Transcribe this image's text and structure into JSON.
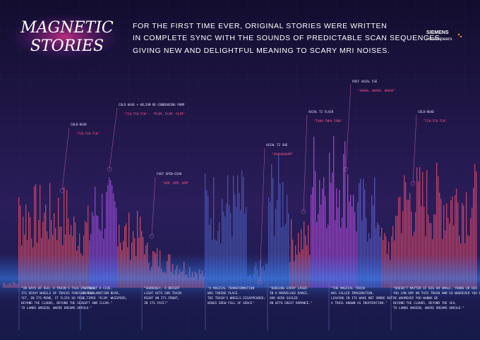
{
  "logo": {
    "line1": "MAGNETIC",
    "line2": "STORIES"
  },
  "headline": [
    "FOR THE FIRST TIME EVER, ORIGINAL STORIES WERE WRITTEN",
    "IN COMPLETE SYNC WITH THE SOUNDS OF PREDICTABLE SCAN SEQUENCES,",
    "GIVING NEW AND DELIGHTFUL MEANING TO SCARY MRI NOISES."
  ],
  "brand": {
    "line1": "SIEMENS",
    "line2": "Healthineers"
  },
  "annotations": [
    {
      "label": "COLD-HEAD",
      "sound": "\"TCH-TCH-TCH\""
    },
    {
      "label": "COLD HEAD + HELIUM RE-CONDENSING PUMP",
      "sound": "\"TCH-TCH-TCH\" · \"PLIM, PLIM, PLIM\""
    },
    {
      "label": "FAST SPIN-ECHO",
      "sound": "\"HIM, HIM, HIM\""
    },
    {
      "label": "AXIAL T2 SHE",
      "sound": "\"ZAAAAAAAAM\""
    },
    {
      "label": "AXIAL T2 FLAIR",
      "sound": "\"TAKA-TAKA-TAKA\""
    },
    {
      "label": "POST AXIAL FSE",
      "sound": "\"SHAAA, WAAAA, WAAAA\""
    },
    {
      "label": "COLD-HEAD",
      "sound": "\"TCH-TCH-TCH\""
    }
  ],
  "stories": [
    [
      "\"IN DAYS OF OLD, A TRAIN'S TALE IS TOLD,",
      "ITS HEAVY WHEELS OF TRACKS FOREVER ROLL.",
      "YET, IN ITS MIND, IT FLIES SO FREE,",
      "BEYOND THE CLOUDS, BEYOND THE SEA,",
      "TO LANDS UNSEEN, WHERE DREAMS UNFOLD.\""
    ],
    [
      "\"WITHOUT A CLUE,",
      "NO EXPLANATION NEAR,",
      "A TIMID 'PLIM' WHISPERS,",
      "SOFT AND CLEAR.\""
    ],
    [
      "\"SUDDENLY, A BRIGHT",
      "LIGHT HITS OUR TRAIN",
      "RIGHT ON ITS FRONT,",
      "IN ITS FACE!\""
    ],
    [
      "\"A MAGICAL TRANSFORMATION",
      "WAS TAKING PLACE.",
      "THE TRAIN'S WHEELS DISAPPEARED;",
      "WINGS GREW FULL OF GRACE\""
    ],
    [
      "\"DODGING EVERY LASER",
      "IN A MARVELOUS DANCE,",
      "OUR HERO SAILED",
      "ON WITH GREAT ROMANCE.\""
    ],
    [
      "\"THE MAGICAL TRAIN",
      "WAS CALLED IMAGINATION,",
      "LEAVING IN ITS WAKE NOT SMOKE BUT",
      "A TRAIL KNOWN AS INSPIRATION.\""
    ],
    [
      "\"DOESN'T MATTER IF BIG OR SMALL, YOUNG OR OLD",
      "YOU CAN HOP ON THIS TRAIN AND GO WHEREVER YOU WANNA GO",
      "BE WHOMEVER YOU WANNA BE",
      "BEYOND THE CLOUDS, BEYOND THE SEA,",
      "TO LANDS UNSEEN, WHERE DREAMS UNFOLD.\""
    ]
  ]
}
